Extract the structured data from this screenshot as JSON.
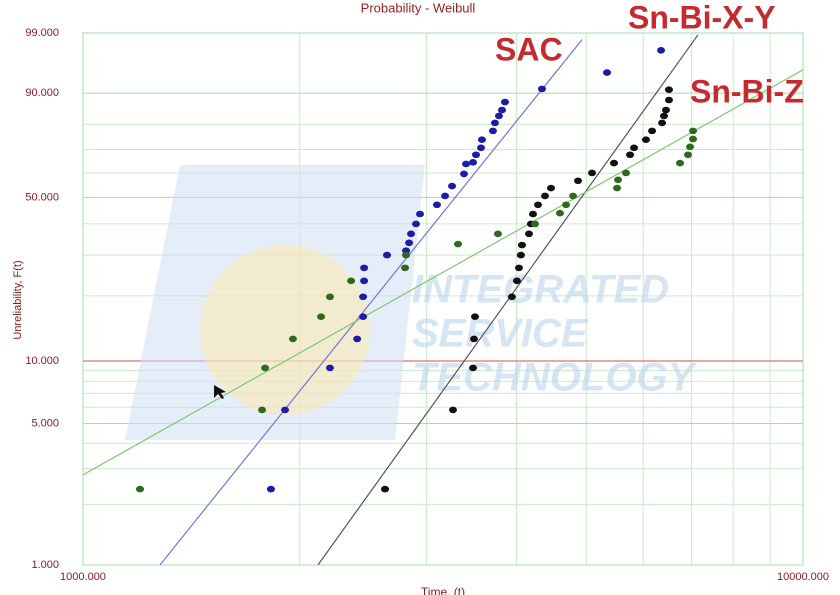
{
  "chart_data": {
    "type": "scatter",
    "title": "Probability - Weibull",
    "x_label": "Time, (t)",
    "y_label": "Unreliability, F(t)",
    "x_scale": "log",
    "y_scale": "weibull",
    "grid": true,
    "xlim": [
      1000,
      10000
    ],
    "ylim": [
      1,
      99
    ],
    "xticks": [
      {
        "value": 1000,
        "label": "1000.000"
      },
      {
        "value": 10000,
        "label": "10000.000"
      }
    ],
    "yticks": [
      {
        "value": 1,
        "label": "1.000"
      },
      {
        "value": 5,
        "label": "5.000"
      },
      {
        "value": 10,
        "label": "10.000"
      },
      {
        "value": 50,
        "label": "50.000"
      },
      {
        "value": 90,
        "label": "90.000"
      },
      {
        "value": 99,
        "label": "99.000"
      }
    ],
    "minor_xticks": [
      2000,
      3000,
      4000,
      5000,
      6000,
      7000,
      8000,
      9000
    ],
    "minor_yticks": [
      2,
      3,
      4,
      6,
      7,
      8,
      9,
      20,
      30,
      40,
      60,
      70,
      80
    ],
    "hline": {
      "value": 10,
      "color": "#d97070"
    },
    "watermark": [
      "INTEGRATED",
      "SERVICE",
      "TECHNOLOGY"
    ],
    "series": [
      {
        "name": "SAC",
        "color": "#1c1ca8",
        "x": [
          1824,
          1908,
          2203,
          2403,
          2449,
          2449,
          2457,
          2457,
          2644,
          2810,
          2837,
          2855,
          2901,
          2938,
          3102,
          3183,
          3255,
          3382,
          3404,
          3481,
          3514,
          3571,
          3582,
          3710,
          3734,
          3782,
          3819,
          3855,
          4340,
          5343,
          6351
        ],
        "values": [
          2.38,
          5.82,
          9.27,
          12.7,
          16.1,
          19.8,
          23.3,
          26.5,
          30.0,
          31.3,
          33.7,
          36.6,
          40.0,
          43.6,
          47.1,
          50.6,
          54.6,
          59.7,
          63.9,
          64.6,
          67.8,
          70.7,
          74.0,
          77.5,
          80.5,
          83.0,
          85.0,
          87.5,
          91.1,
          94.6,
          97.7
        ],
        "fit": {
          "color": "#7474d8",
          "x": [
            1279,
            4933
          ],
          "values": [
            1.0,
            98.6
          ]
        }
      },
      {
        "name": "Sn-Bi-X-Y",
        "color": "#111111",
        "x": [
          2627,
          3265,
          3481,
          3492,
          3503,
          3942,
          4006,
          4032,
          4057,
          4071,
          4163,
          4189,
          4217,
          4285,
          4382,
          4467,
          4870,
          5093,
          5464,
          5751,
          5826,
          6052,
          6171,
          6372,
          6411,
          6452,
          6514,
          6514
        ],
        "values": [
          2.38,
          5.82,
          9.27,
          12.7,
          16.1,
          19.8,
          23.3,
          26.5,
          30.0,
          33.0,
          36.6,
          40.0,
          43.6,
          47.1,
          50.6,
          53.8,
          56.8,
          60.1,
          64.3,
          67.8,
          70.7,
          74.0,
          77.5,
          80.5,
          83.0,
          85.0,
          88.1,
          90.9
        ],
        "fit": {
          "color": "#555555",
          "x": [
            2120,
            7148
          ],
          "values": [
            1.0,
            98.9
          ]
        }
      },
      {
        "name": "Sn-Bi-Z",
        "color": "#2d6a1e",
        "x": [
          1200,
          1773,
          1790,
          1957,
          2141,
          2203,
          2357,
          2801,
          2810,
          3318,
          3770,
          4244,
          4597,
          4687,
          4793,
          5517,
          5535,
          5678,
          6749,
          6923,
          6968,
          7035,
          7035
        ],
        "values": [
          2.38,
          5.82,
          9.27,
          12.7,
          16.1,
          19.8,
          23.3,
          26.5,
          30.0,
          33.3,
          36.6,
          40.0,
          43.9,
          47.1,
          50.6,
          53.8,
          57.2,
          60.1,
          64.3,
          67.8,
          71.1,
          74.3,
          77.5
        ],
        "fit": {
          "color": "#80c870",
          "x": [
            1000,
            10000
          ],
          "values": [
            2.8,
            95.1
          ]
        }
      }
    ]
  }
}
